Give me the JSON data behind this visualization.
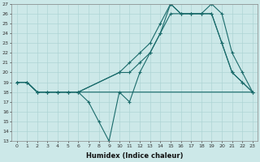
{
  "xlabel": "Humidex (Indice chaleur)",
  "ylabel": "",
  "xlim": [
    -0.5,
    23.5
  ],
  "ylim": [
    13,
    27
  ],
  "background_color": "#cce8e8",
  "grid_color": "#aed4d4",
  "line_color": "#1a6b6b",
  "series": [
    {
      "x": [
        0,
        1,
        2,
        3,
        4,
        5,
        6,
        7,
        8,
        9,
        10,
        11,
        12,
        13,
        14,
        15,
        16,
        17,
        18,
        19,
        20,
        21,
        22,
        23
      ],
      "y": [
        19,
        19,
        18,
        18,
        18,
        18,
        18,
        18,
        18,
        18,
        18,
        18,
        18,
        18,
        18,
        18,
        18,
        18,
        18,
        18,
        18,
        18,
        18,
        18
      ],
      "marker": false
    },
    {
      "x": [
        0,
        1,
        2,
        3,
        4,
        5,
        6,
        7,
        8,
        9,
        10,
        11,
        12,
        13,
        14,
        15,
        16,
        17,
        18,
        19,
        20,
        21,
        22,
        23
      ],
      "y": [
        19,
        19,
        18,
        18,
        18,
        18,
        18,
        17,
        15,
        13,
        18,
        17,
        20,
        22,
        24,
        27,
        26,
        26,
        26,
        27,
        26,
        22,
        20,
        18
      ],
      "marker": true
    },
    {
      "x": [
        0,
        1,
        2,
        3,
        4,
        5,
        6,
        10,
        11,
        12,
        13,
        14,
        15,
        16,
        17,
        18,
        19,
        20,
        21,
        22,
        23
      ],
      "y": [
        19,
        19,
        18,
        18,
        18,
        18,
        18,
        20,
        21,
        22,
        23,
        25,
        27,
        26,
        26,
        26,
        26,
        23,
        20,
        19,
        18
      ],
      "marker": true
    },
    {
      "x": [
        0,
        1,
        2,
        3,
        4,
        5,
        6,
        10,
        11,
        12,
        13,
        14,
        15,
        16,
        17,
        18,
        19,
        20,
        21,
        22,
        23
      ],
      "y": [
        19,
        19,
        18,
        18,
        18,
        18,
        18,
        20,
        20,
        21,
        22,
        24,
        26,
        26,
        26,
        26,
        26,
        23,
        20,
        19,
        18
      ],
      "marker": true
    }
  ]
}
